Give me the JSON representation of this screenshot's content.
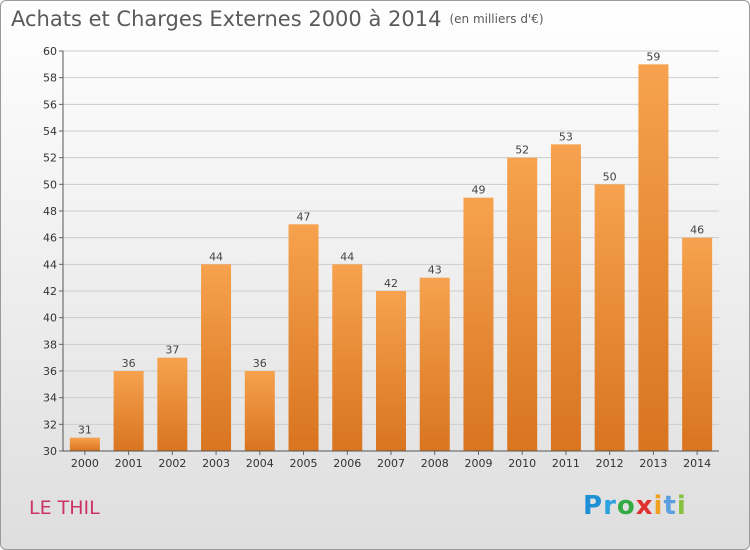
{
  "title": "Achats et Charges Externes 2000 à 2014",
  "unit": "(en milliers d'€)",
  "place": "LE THIL",
  "logo": {
    "text": "Proxiti"
  },
  "colors": {
    "bar_top": "#f6a24e",
    "bar_bottom": "#d9741f",
    "grid": "#cccccc",
    "place": "#cc3366"
  },
  "chart_data": {
    "type": "bar",
    "title": "Achats et Charges Externes 2000 à 2014",
    "subtitle": "(en milliers d'€)",
    "xlabel": "",
    "ylabel": "",
    "categories": [
      "2000",
      "2001",
      "2002",
      "2003",
      "2004",
      "2005",
      "2006",
      "2007",
      "2008",
      "2009",
      "2010",
      "2011",
      "2012",
      "2013",
      "2014"
    ],
    "values": [
      31,
      36,
      37,
      44,
      36,
      47,
      44,
      42,
      43,
      49,
      52,
      53,
      50,
      59,
      46
    ],
    "ylim": [
      30,
      60
    ],
    "yticks": [
      30,
      32,
      34,
      36,
      38,
      40,
      42,
      44,
      46,
      48,
      50,
      52,
      54,
      56,
      58,
      60
    ],
    "grid": true,
    "legend": "none"
  }
}
